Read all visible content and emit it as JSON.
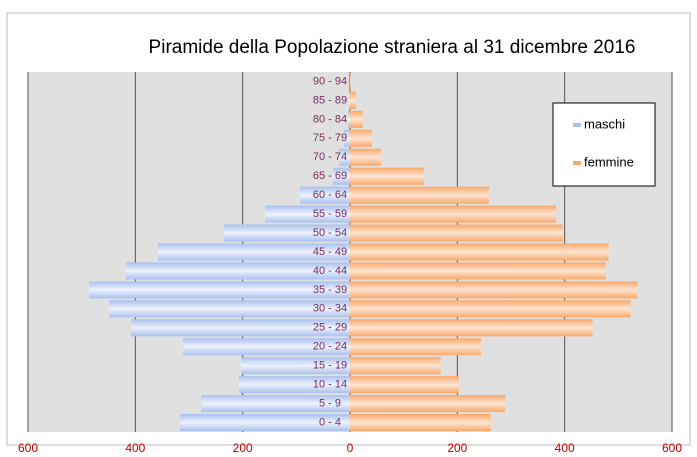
{
  "chart_data": {
    "type": "pyramid",
    "title": "Piramide della Popolazione straniera al 31 dicembre 2016",
    "categories": [
      "0 - 4",
      "5 - 9",
      "10 - 14",
      "15 - 19",
      "20 - 24",
      "25 - 29",
      "30 - 34",
      "35 - 39",
      "40 - 44",
      "45 - 49",
      "50 - 54",
      "55 - 59",
      "60 - 64",
      "65 - 69",
      "70 - 74",
      "75 - 79",
      "80 - 84",
      "85 - 89",
      "90 - 94"
    ],
    "series": [
      {
        "name": "maschi",
        "color": "#a9c0ee",
        "values": [
          -317,
          -277,
          -207,
          -203,
          -311,
          -408,
          -449,
          -486,
          -417,
          -358,
          -235,
          -158,
          -93,
          -32,
          -20,
          -11,
          -4,
          -2,
          0
        ]
      },
      {
        "name": "femmine",
        "color": "#f9a86a",
        "values": [
          263,
          289,
          203,
          169,
          244,
          452,
          523,
          536,
          477,
          482,
          397,
          384,
          259,
          138,
          58,
          41,
          24,
          11,
          2
        ]
      }
    ],
    "xlim": [
      -600,
      600
    ],
    "xticks": [
      {
        "value": -600,
        "label": "600"
      },
      {
        "value": -400,
        "label": "400"
      },
      {
        "value": -200,
        "label": "200"
      },
      0,
      {
        "value": 200,
        "label": "200"
      },
      {
        "value": 400,
        "label": "400"
      },
      {
        "value": 600,
        "label": "600"
      }
    ],
    "grid": true
  }
}
